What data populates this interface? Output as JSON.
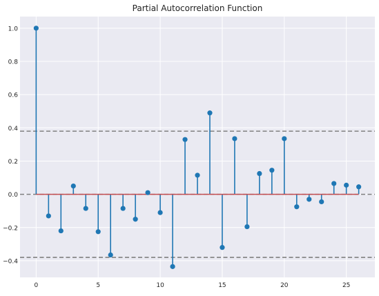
{
  "chart_data": {
    "type": "stem",
    "title": "Partial Autocorrelation Function",
    "xlabel": "",
    "ylabel": "",
    "x": [
      0,
      1,
      2,
      3,
      4,
      5,
      6,
      7,
      8,
      9,
      10,
      11,
      12,
      13,
      14,
      15,
      16,
      17,
      18,
      19,
      20,
      21,
      22,
      23,
      24,
      25,
      26
    ],
    "values": [
      1.0,
      -0.13,
      -0.22,
      0.05,
      -0.085,
      -0.225,
      -0.365,
      -0.085,
      -0.15,
      0.01,
      -0.11,
      -0.435,
      0.33,
      0.115,
      0.49,
      -0.32,
      0.335,
      -0.195,
      0.125,
      0.145,
      0.335,
      -0.075,
      -0.03,
      -0.045,
      0.065,
      0.055,
      0.045
    ],
    "confidence_bounds": [
      -0.38,
      0.38
    ],
    "xlim": [
      -1.3,
      27.3
    ],
    "ylim": [
      -0.5,
      1.07
    ],
    "xticks": [
      0,
      5,
      10,
      15,
      20,
      25
    ],
    "yticks": [
      -0.4,
      -0.2,
      0.0,
      0.2,
      0.4,
      0.6,
      0.8,
      1.0
    ],
    "ytick_labels": [
      "−0.4",
      "−0.2",
      "0.0",
      "0.2",
      "0.4",
      "0.6",
      "0.8",
      "1.0"
    ],
    "grid": true,
    "colors": {
      "background": "#eaeaf2",
      "grid": "#ffffff",
      "stem": "#1f77b4",
      "baseline": "#c44e52",
      "bound": "#808080"
    }
  }
}
